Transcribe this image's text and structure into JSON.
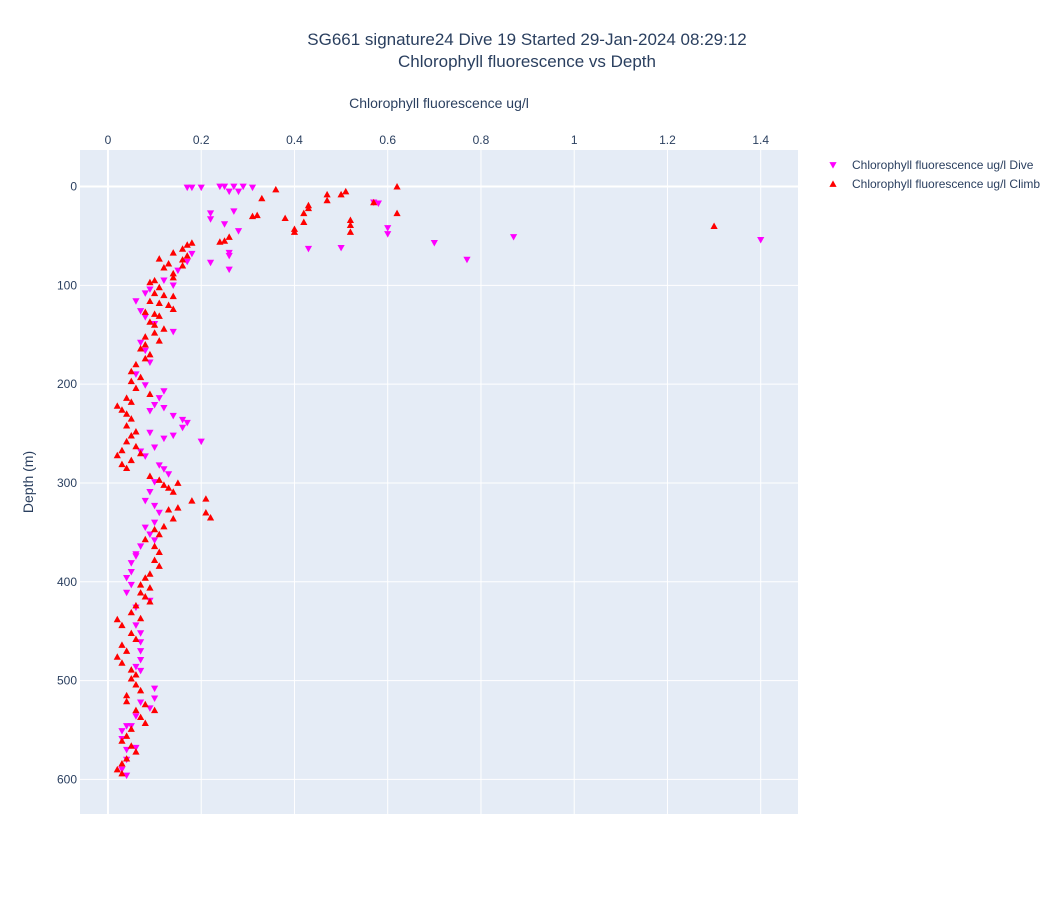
{
  "colors": {
    "plot_background": "#e5ecf6",
    "grid": "#ffffff",
    "text": "#2a3f5f",
    "dive_marker": "#ff00ff",
    "climb_marker": "#ff0000"
  },
  "chart_data": {
    "type": "scatter",
    "title": [
      "SG661 signature24 Dive 19 Started 29-Jan-2024 08:29:12",
      "Chlorophyll fluorescence vs Depth"
    ],
    "xlabel": "Chlorophyll fluorescence ug/l",
    "ylabel": "Depth (m)",
    "x_axis_side": "top",
    "y_axis_reversed": true,
    "xlim": [
      -0.06,
      1.48
    ],
    "ylim": [
      -37,
      635
    ],
    "x_ticks": [
      0,
      0.2,
      0.4,
      0.6,
      0.8,
      1,
      1.2,
      1.4
    ],
    "x_tick_labels": [
      "0",
      "0.2",
      "0.4",
      "0.6",
      "0.8",
      "1",
      "1.2",
      "1.4"
    ],
    "y_ticks": [
      0,
      100,
      200,
      300,
      400,
      500,
      600
    ],
    "y_tick_labels": [
      "0",
      "100",
      "200",
      "300",
      "400",
      "500",
      "600"
    ],
    "grid": true,
    "legend_position": "top-right",
    "series": [
      {
        "name": "Chlorophyll fluorescence ug/l Dive",
        "marker": "triangle-down",
        "color": "#ff00ff",
        "points": [
          [
            0.17,
            1
          ],
          [
            0.18,
            1
          ],
          [
            0.2,
            1
          ],
          [
            0.24,
            0
          ],
          [
            0.25,
            0
          ],
          [
            0.27,
            0
          ],
          [
            0.29,
            0
          ],
          [
            0.31,
            1
          ],
          [
            0.26,
            5
          ],
          [
            0.28,
            5
          ],
          [
            0.58,
            17
          ],
          [
            0.57,
            16
          ],
          [
            0.22,
            27
          ],
          [
            0.27,
            25
          ],
          [
            0.22,
            33
          ],
          [
            0.25,
            38
          ],
          [
            0.28,
            45
          ],
          [
            0.6,
            42
          ],
          [
            0.6,
            48
          ],
          [
            0.5,
            62
          ],
          [
            0.43,
            63
          ],
          [
            0.87,
            51
          ],
          [
            1.4,
            54
          ],
          [
            0.7,
            57
          ],
          [
            0.77,
            74
          ],
          [
            0.26,
            67
          ],
          [
            0.26,
            70
          ],
          [
            0.22,
            77
          ],
          [
            0.26,
            84
          ],
          [
            0.18,
            68
          ],
          [
            0.17,
            76
          ],
          [
            0.15,
            85
          ],
          [
            0.12,
            95
          ],
          [
            0.14,
            100
          ],
          [
            0.09,
            104
          ],
          [
            0.08,
            108
          ],
          [
            0.06,
            116
          ],
          [
            0.07,
            126
          ],
          [
            0.08,
            132
          ],
          [
            0.1,
            139
          ],
          [
            0.14,
            147
          ],
          [
            0.07,
            158
          ],
          [
            0.08,
            166
          ],
          [
            0.09,
            178
          ],
          [
            0.06,
            190
          ],
          [
            0.08,
            201
          ],
          [
            0.11,
            214
          ],
          [
            0.12,
            207
          ],
          [
            0.1,
            221
          ],
          [
            0.12,
            224
          ],
          [
            0.09,
            227
          ],
          [
            0.14,
            232
          ],
          [
            0.16,
            236
          ],
          [
            0.17,
            239
          ],
          [
            0.16,
            244
          ],
          [
            0.14,
            252
          ],
          [
            0.12,
            255
          ],
          [
            0.2,
            258
          ],
          [
            0.09,
            249
          ],
          [
            0.1,
            264
          ],
          [
            0.07,
            268
          ],
          [
            0.08,
            273
          ],
          [
            0.11,
            282
          ],
          [
            0.12,
            286
          ],
          [
            0.13,
            291
          ],
          [
            0.1,
            299
          ],
          [
            0.09,
            309
          ],
          [
            0.08,
            318
          ],
          [
            0.1,
            323
          ],
          [
            0.11,
            330
          ],
          [
            0.1,
            340
          ],
          [
            0.08,
            345
          ],
          [
            0.09,
            352
          ],
          [
            0.1,
            358
          ],
          [
            0.07,
            364
          ],
          [
            0.06,
            372
          ],
          [
            0.05,
            381
          ],
          [
            0.05,
            390
          ],
          [
            0.04,
            396
          ],
          [
            0.05,
            403
          ],
          [
            0.04,
            411
          ],
          [
            0.06,
            426
          ],
          [
            0.06,
            444
          ],
          [
            0.07,
            452
          ],
          [
            0.07,
            461
          ],
          [
            0.07,
            470
          ],
          [
            0.07,
            479
          ],
          [
            0.06,
            486
          ],
          [
            0.07,
            490
          ],
          [
            0.1,
            508
          ],
          [
            0.1,
            518
          ],
          [
            0.07,
            522
          ],
          [
            0.09,
            528
          ],
          [
            0.06,
            536
          ],
          [
            0.04,
            546
          ],
          [
            0.03,
            551
          ],
          [
            0.03,
            559
          ],
          [
            0.04,
            570
          ],
          [
            0.04,
            580
          ],
          [
            0.03,
            590
          ],
          [
            0.04,
            596
          ],
          [
            0.06,
            568
          ],
          [
            0.05,
            546
          ],
          [
            0.09,
            419
          ],
          [
            0.06,
            374
          ]
        ]
      },
      {
        "name": "Chlorophyll fluorescence ug/l Climb",
        "marker": "triangle-up",
        "color": "#ff0000",
        "points": [
          [
            0.62,
            0
          ],
          [
            0.36,
            3
          ],
          [
            0.51,
            5
          ],
          [
            0.5,
            8
          ],
          [
            0.47,
            8
          ],
          [
            0.47,
            14
          ],
          [
            0.33,
            12
          ],
          [
            0.57,
            16
          ],
          [
            0.43,
            19
          ],
          [
            0.43,
            22
          ],
          [
            0.42,
            27
          ],
          [
            0.62,
            27
          ],
          [
            0.32,
            29
          ],
          [
            0.31,
            30
          ],
          [
            0.38,
            32
          ],
          [
            0.42,
            36
          ],
          [
            0.52,
            34
          ],
          [
            0.52,
            39
          ],
          [
            0.4,
            43
          ],
          [
            0.4,
            46
          ],
          [
            0.52,
            46
          ],
          [
            1.3,
            40
          ],
          [
            0.26,
            51
          ],
          [
            0.25,
            55
          ],
          [
            0.24,
            56
          ],
          [
            0.18,
            57
          ],
          [
            0.17,
            59
          ],
          [
            0.16,
            63
          ],
          [
            0.14,
            67
          ],
          [
            0.17,
            70
          ],
          [
            0.16,
            74
          ],
          [
            0.11,
            73
          ],
          [
            0.13,
            78
          ],
          [
            0.16,
            80
          ],
          [
            0.12,
            82
          ],
          [
            0.14,
            88
          ],
          [
            0.14,
            92
          ],
          [
            0.1,
            95
          ],
          [
            0.09,
            97
          ],
          [
            0.11,
            102
          ],
          [
            0.1,
            108
          ],
          [
            0.12,
            110
          ],
          [
            0.14,
            111
          ],
          [
            0.09,
            116
          ],
          [
            0.11,
            118
          ],
          [
            0.13,
            120
          ],
          [
            0.14,
            124
          ],
          [
            0.08,
            127
          ],
          [
            0.1,
            129
          ],
          [
            0.11,
            131
          ],
          [
            0.09,
            137
          ],
          [
            0.1,
            140
          ],
          [
            0.12,
            144
          ],
          [
            0.1,
            148
          ],
          [
            0.08,
            152
          ],
          [
            0.11,
            156
          ],
          [
            0.08,
            160
          ],
          [
            0.07,
            164
          ],
          [
            0.09,
            170
          ],
          [
            0.08,
            174
          ],
          [
            0.06,
            180
          ],
          [
            0.05,
            187
          ],
          [
            0.07,
            193
          ],
          [
            0.05,
            197
          ],
          [
            0.06,
            204
          ],
          [
            0.09,
            210
          ],
          [
            0.04,
            214
          ],
          [
            0.05,
            218
          ],
          [
            0.02,
            222
          ],
          [
            0.03,
            226
          ],
          [
            0.04,
            230
          ],
          [
            0.05,
            235
          ],
          [
            0.04,
            242
          ],
          [
            0.06,
            248
          ],
          [
            0.05,
            252
          ],
          [
            0.04,
            258
          ],
          [
            0.06,
            263
          ],
          [
            0.03,
            267
          ],
          [
            0.02,
            272
          ],
          [
            0.05,
            277
          ],
          [
            0.03,
            281
          ],
          [
            0.04,
            285
          ],
          [
            0.07,
            270
          ],
          [
            0.09,
            293
          ],
          [
            0.11,
            297
          ],
          [
            0.12,
            302
          ],
          [
            0.13,
            305
          ],
          [
            0.15,
            300
          ],
          [
            0.14,
            309
          ],
          [
            0.18,
            318
          ],
          [
            0.21,
            316
          ],
          [
            0.21,
            330
          ],
          [
            0.22,
            335
          ],
          [
            0.15,
            325
          ],
          [
            0.13,
            327
          ],
          [
            0.14,
            336
          ],
          [
            0.12,
            344
          ],
          [
            0.1,
            347
          ],
          [
            0.11,
            352
          ],
          [
            0.08,
            357
          ],
          [
            0.1,
            364
          ],
          [
            0.11,
            370
          ],
          [
            0.1,
            378
          ],
          [
            0.11,
            384
          ],
          [
            0.09,
            392
          ],
          [
            0.08,
            396
          ],
          [
            0.07,
            403
          ],
          [
            0.09,
            406
          ],
          [
            0.07,
            411
          ],
          [
            0.08,
            415
          ],
          [
            0.09,
            420
          ],
          [
            0.06,
            424
          ],
          [
            0.05,
            431
          ],
          [
            0.07,
            437
          ],
          [
            0.02,
            438
          ],
          [
            0.03,
            444
          ],
          [
            0.05,
            452
          ],
          [
            0.06,
            458
          ],
          [
            0.03,
            464
          ],
          [
            0.04,
            470
          ],
          [
            0.02,
            476
          ],
          [
            0.03,
            482
          ],
          [
            0.05,
            489
          ],
          [
            0.06,
            494
          ],
          [
            0.05,
            498
          ],
          [
            0.06,
            504
          ],
          [
            0.07,
            510
          ],
          [
            0.04,
            515
          ],
          [
            0.04,
            521
          ],
          [
            0.08,
            524
          ],
          [
            0.06,
            530
          ],
          [
            0.07,
            537
          ],
          [
            0.08,
            543
          ],
          [
            0.05,
            549
          ],
          [
            0.04,
            556
          ],
          [
            0.03,
            561
          ],
          [
            0.05,
            566
          ],
          [
            0.06,
            572
          ],
          [
            0.04,
            579
          ],
          [
            0.03,
            584
          ],
          [
            0.02,
            590
          ],
          [
            0.03,
            594
          ],
          [
            0.1,
            530
          ]
        ]
      }
    ]
  }
}
